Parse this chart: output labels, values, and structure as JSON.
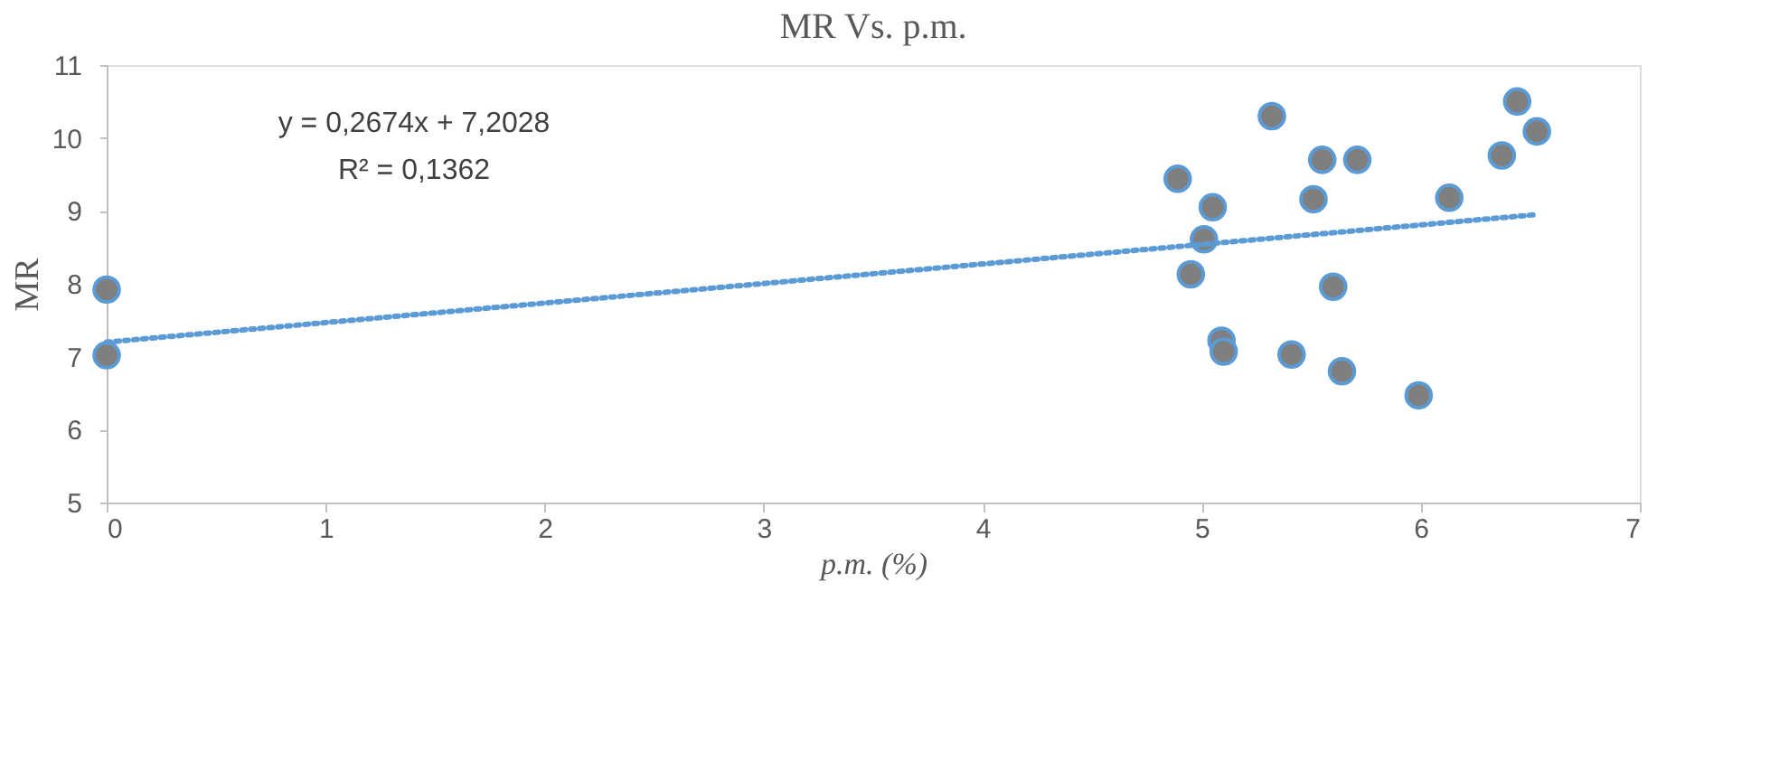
{
  "chart_data": {
    "type": "scatter",
    "title": "MR Vs. p.m.",
    "xlabel": "p.m. (%)",
    "ylabel": "MR",
    "xlim": [
      0,
      7
    ],
    "xticks": [
      0,
      1,
      2,
      3,
      4,
      5,
      6,
      7
    ],
    "ylim": [
      5,
      11
    ],
    "yticks": [
      5,
      6,
      7,
      8,
      9,
      10,
      11
    ],
    "grid": false,
    "series": [
      {
        "color": "#7f7f7f",
        "marker": "circle",
        "x": [
          0,
          0,
          5.32,
          5.55,
          5.71,
          4.89,
          5.05,
          5.51,
          6.13,
          5.01,
          4.95,
          5.6,
          5.09,
          5.1,
          5.41,
          5.64,
          5.99,
          6.44,
          6.53,
          6.37
        ],
        "values": [
          7.92,
          7.02,
          10.3,
          9.7,
          9.7,
          9.44,
          9.05,
          9.16,
          9.18,
          8.61,
          8.13,
          7.96,
          7.22,
          7.07,
          7.03,
          6.8,
          6.47,
          10.5,
          10.09,
          9.76
        ]
      },
      {
        "type": "line",
        "color": "#5b9bd5",
        "line_style": "dotted",
        "x": [
          0,
          6.53
        ],
        "values": [
          7.2,
          8.95
        ]
      }
    ],
    "annotations": [
      "y = 0,2674x + 7,2028",
      "R² = 0,1362"
    ]
  }
}
